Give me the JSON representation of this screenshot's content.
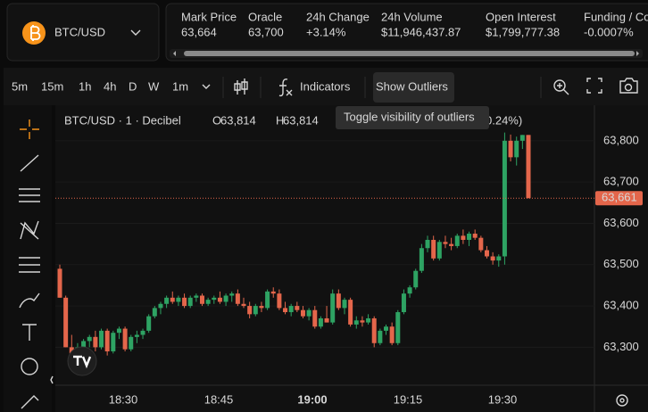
{
  "header": {
    "pair": "BTC/USD",
    "stats": [
      {
        "label": "Mark Price",
        "value": "63,664",
        "color": "#e8e8e8"
      },
      {
        "label": "Oracle",
        "value": "63,700",
        "color": "#e8e8e8"
      },
      {
        "label": "24h Change",
        "value": "+3.14%",
        "color": "#3ecf6e"
      },
      {
        "label": "24h Volume",
        "value": "$11,946,437.87",
        "color": "#e8e8e8"
      },
      {
        "label": "Open Interest",
        "value": "$1,799,777.38",
        "color": "#e8e8e8"
      },
      {
        "label": "Funding / Cou",
        "value": "-0.0007%",
        "color": "#f0584a"
      }
    ]
  },
  "toolbar": {
    "intervals": [
      "5m",
      "15m",
      "1h",
      "4h",
      "D",
      "W",
      "1m"
    ],
    "active_interval": "1m",
    "indicators": "Indicators",
    "outliers": "Show Outliers",
    "tooltip": "Toggle visibility of outliers"
  },
  "chart": {
    "type": "candlestick",
    "symbol": "BTC/USD · 1 · Decibel",
    "ohlc": {
      "open_label": "O",
      "open": "63,814",
      "high_label": "H",
      "high": "63,814",
      "change_tail": "0.24%)"
    },
    "up_color": "#2ea363",
    "down_color": "#e4664b",
    "ylim": [
      63208,
      63886
    ],
    "yticks": [
      {
        "value": 63300,
        "label": "63,300"
      },
      {
        "value": 63400,
        "label": "63,400"
      },
      {
        "value": 63500,
        "label": "63,500"
      },
      {
        "value": 63600,
        "label": "63,600"
      },
      {
        "value": 63700,
        "label": "63,700"
      },
      {
        "value": 63800,
        "label": "63,800"
      }
    ],
    "grid": true,
    "last_price": 63661,
    "last_price_label": "63,661",
    "time_labels": [
      "18:30",
      "18:45",
      "19:00",
      "19:15",
      "19:30"
    ],
    "candles": [
      [
        63490,
        63500,
        63420,
        63420
      ],
      [
        63420,
        63425,
        63300,
        63300
      ],
      [
        63300,
        63330,
        63270,
        63285
      ],
      [
        63285,
        63310,
        63275,
        63300
      ],
      [
        63300,
        63320,
        63290,
        63315
      ],
      [
        63315,
        63330,
        63300,
        63325
      ],
      [
        63325,
        63340,
        63290,
        63300
      ],
      [
        63300,
        63345,
        63295,
        63340
      ],
      [
        63340,
        63345,
        63280,
        63290
      ],
      [
        63290,
        63340,
        63285,
        63335
      ],
      [
        63335,
        63350,
        63320,
        63345
      ],
      [
        63345,
        63350,
        63290,
        63295
      ],
      [
        63295,
        63330,
        63290,
        63325
      ],
      [
        63325,
        63340,
        63310,
        63330
      ],
      [
        63330,
        63345,
        63320,
        63340
      ],
      [
        63340,
        63380,
        63335,
        63375
      ],
      [
        63375,
        63400,
        63370,
        63395
      ],
      [
        63395,
        63410,
        63380,
        63405
      ],
      [
        63405,
        63425,
        63395,
        63420
      ],
      [
        63420,
        63435,
        63405,
        63410
      ],
      [
        63410,
        63425,
        63400,
        63420
      ],
      [
        63420,
        63430,
        63395,
        63400
      ],
      [
        63400,
        63425,
        63395,
        63420
      ],
      [
        63420,
        63430,
        63410,
        63425
      ],
      [
        63425,
        63430,
        63400,
        63405
      ],
      [
        63405,
        63420,
        63400,
        63415
      ],
      [
        63415,
        63425,
        63405,
        63420
      ],
      [
        63420,
        63435,
        63405,
        63410
      ],
      [
        63410,
        63430,
        63400,
        63425
      ],
      [
        63425,
        63435,
        63410,
        63430
      ],
      [
        63430,
        63440,
        63400,
        63405
      ],
      [
        63405,
        63420,
        63395,
        63400
      ],
      [
        63400,
        63410,
        63370,
        63380
      ],
      [
        63380,
        63405,
        63375,
        63400
      ],
      [
        63400,
        63410,
        63385,
        63395
      ],
      [
        63395,
        63440,
        63390,
        63435
      ],
      [
        63435,
        63445,
        63420,
        63430
      ],
      [
        63430,
        63440,
        63390,
        63395
      ],
      [
        63395,
        63410,
        63380,
        63385
      ],
      [
        63385,
        63405,
        63375,
        63400
      ],
      [
        63400,
        63410,
        63385,
        63390
      ],
      [
        63390,
        63400,
        63370,
        63375
      ],
      [
        63375,
        63395,
        63365,
        63390
      ],
      [
        63390,
        63400,
        63345,
        63350
      ],
      [
        63350,
        63375,
        63345,
        63370
      ],
      [
        63370,
        63400,
        63360,
        63360
      ],
      [
        63360,
        63440,
        63355,
        63430
      ],
      [
        63430,
        63440,
        63390,
        63395
      ],
      [
        63395,
        63420,
        63380,
        63415
      ],
      [
        63415,
        63420,
        63350,
        63355
      ],
      [
        63355,
        63375,
        63345,
        63365
      ],
      [
        63365,
        63375,
        63350,
        63360
      ],
      [
        63360,
        63380,
        63355,
        63370
      ],
      [
        63370,
        63375,
        63300,
        63310
      ],
      [
        63310,
        63345,
        63305,
        63340
      ],
      [
        63340,
        63355,
        63330,
        63350
      ],
      [
        63350,
        63360,
        63305,
        63310
      ],
      [
        63310,
        63390,
        63305,
        63385
      ],
      [
        63385,
        63440,
        63380,
        63430
      ],
      [
        63430,
        63450,
        63420,
        63445
      ],
      [
        63445,
        63490,
        63440,
        63485
      ],
      [
        63485,
        63550,
        63480,
        63540
      ],
      [
        63540,
        63570,
        63530,
        63560
      ],
      [
        63560,
        63570,
        63510,
        63515
      ],
      [
        63515,
        63560,
        63510,
        63555
      ],
      [
        63555,
        63570,
        63540,
        63550
      ],
      [
        63550,
        63565,
        63535,
        63545
      ],
      [
        63545,
        63575,
        63540,
        63570
      ],
      [
        63570,
        63585,
        63550,
        63560
      ],
      [
        63560,
        63580,
        63545,
        63575
      ],
      [
        63575,
        63585,
        63560,
        63565
      ],
      [
        63565,
        63570,
        63530,
        63535
      ],
      [
        63535,
        63545,
        63515,
        63520
      ],
      [
        63520,
        63530,
        63500,
        63510
      ],
      [
        63510,
        63525,
        63495,
        63520
      ],
      [
        63520,
        63820,
        63500,
        63800
      ],
      [
        63800,
        63815,
        63750,
        63760
      ],
      [
        63760,
        63810,
        63740,
        63800
      ],
      [
        63800,
        63814,
        63780,
        63814
      ],
      [
        63814,
        63814,
        63661,
        63661
      ]
    ]
  }
}
